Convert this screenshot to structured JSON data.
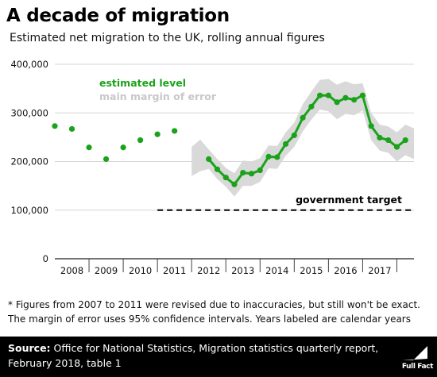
{
  "title": "A decade of migration",
  "subtitle": "Estimated net migration to the UK, rolling annual figures",
  "colors": {
    "series": "#1aa31a",
    "band": "#d9d9d9",
    "legend_band": "#c8c8c8",
    "footer": "#000000"
  },
  "chart_data": {
    "type": "line",
    "ylim": [
      0,
      400000
    ],
    "yticks": [
      "0",
      "100,000",
      "200,000",
      "300,000",
      "400,000"
    ],
    "ytick_values": [
      0,
      100000,
      200000,
      300000,
      400000
    ],
    "xlim": [
      2007.5,
      2018.0
    ],
    "xtick_labels": [
      "2008",
      "2009",
      "2010",
      "2011",
      "2012",
      "2013",
      "2014",
      "2015",
      "2016",
      "2017"
    ],
    "xtick_centers": [
      2008,
      2009,
      2010,
      2011,
      2012,
      2013,
      2014,
      2015,
      2016,
      2017
    ],
    "year_boundaries": [
      2008.5,
      2009.5,
      2010.5,
      2011.5,
      2012.5,
      2013.5,
      2014.5,
      2015.5,
      2016.5,
      2017.5
    ],
    "grid": true,
    "series": [
      {
        "name": "estimated level",
        "style": "points",
        "x": [
          2007.5,
          2008.0,
          2008.5,
          2009.0,
          2009.5,
          2010.0,
          2010.5,
          2011.0,
          2011.5
        ],
        "values": [
          273000,
          267000,
          229000,
          205000,
          229000,
          244000,
          256000,
          263000,
          null
        ]
      },
      {
        "name": "estimated level",
        "style": "line",
        "x": [
          2012.0,
          2012.25,
          2012.5,
          2012.75,
          2013.0,
          2013.25,
          2013.5,
          2013.75,
          2014.0,
          2014.25,
          2014.5,
          2014.75,
          2015.0,
          2015.25,
          2015.5,
          2015.75,
          2016.0,
          2016.25,
          2016.5,
          2016.75,
          2017.0,
          2017.25,
          2017.5,
          2017.75
        ],
        "values": [
          205000,
          184000,
          167000,
          153000,
          177000,
          175000,
          182000,
          210000,
          209000,
          236000,
          254000,
          290000,
          313000,
          336000,
          336000,
          322000,
          331000,
          327000,
          336000,
          273000,
          249000,
          244000,
          230000,
          244000
        ]
      }
    ],
    "error_band": {
      "name": "main margin of error",
      "x": [
        2011.5,
        2011.75,
        2012.0,
        2012.25,
        2012.5,
        2012.75,
        2013.0,
        2013.25,
        2013.5,
        2013.75,
        2014.0,
        2014.25,
        2014.5,
        2014.75,
        2015.0,
        2015.25,
        2015.5,
        2015.75,
        2016.0,
        2016.25,
        2016.5,
        2016.75,
        2017.0,
        2017.25,
        2017.5,
        2017.75,
        2018.0
      ],
      "upper": [
        230000,
        245000,
        225000,
        205000,
        187000,
        176000,
        202000,
        200000,
        207000,
        233000,
        232000,
        260000,
        280000,
        318000,
        344000,
        368000,
        370000,
        358000,
        365000,
        359000,
        361000,
        300000,
        276000,
        272000,
        260000,
        276000,
        268000
      ],
      "lower": [
        170000,
        180000,
        185000,
        164000,
        148000,
        128000,
        150000,
        150000,
        158000,
        186000,
        185000,
        212000,
        230000,
        262000,
        286000,
        307000,
        303000,
        287000,
        298000,
        295000,
        305000,
        244000,
        222000,
        218000,
        200000,
        213000,
        205000
      ]
    },
    "reference_line": {
      "label": "government target",
      "value": 100000,
      "x_start": 2010.5,
      "x_end": 2018.0
    },
    "legend": {
      "entries": [
        "estimated level",
        "main margin of error"
      ],
      "placement": "top-left"
    }
  },
  "footnote": "* Figures from 2007 to 2011 were revised due to inaccuracies, but still won't be exact. The margin of error uses 95% confidence intervals. Years labeled are calendar years",
  "source": {
    "label": "Source:",
    "text": "Office for National Statistics, Migration statistics quarterly report, February 2018, table 1"
  },
  "logo_text": "Full Fact"
}
